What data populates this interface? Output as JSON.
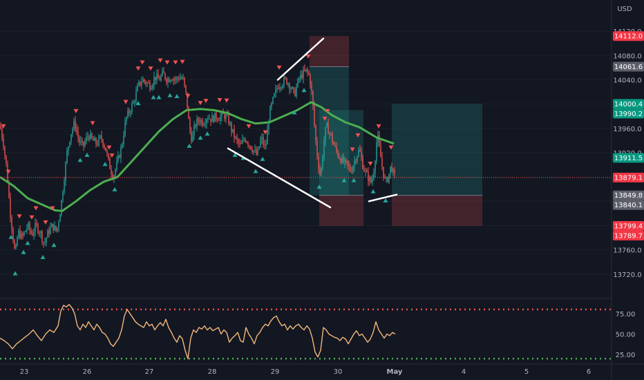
{
  "currency": "USD",
  "colors": {
    "background": "#131722",
    "up": "#26a69a",
    "down": "#ef5350",
    "ma": "#4caf50",
    "rsi": "#f5b87a",
    "rsi_upper": "#ef5350",
    "rsi_lower": "#4caf50",
    "trendline": "#ffffff"
  },
  "chart_data": [
    {
      "type": "candlestick",
      "title": "",
      "x_ticks": [
        "23",
        "26",
        "27",
        "28",
        "29",
        "30",
        "May",
        "4",
        "5",
        "6"
      ],
      "y_ticks": [
        "14120.0",
        "14080.0",
        "14040.0",
        "14000.0",
        "13960.0",
        "13920.0",
        "13880.0",
        "13840.0",
        "13800.0",
        "13760.0",
        "13720.0"
      ],
      "ylim": [
        13680,
        14160
      ],
      "price_badges": [
        {
          "label": "14112.0",
          "kind": "red"
        },
        {
          "label": "14061.6",
          "kind": "gray"
        },
        {
          "label": "14000.4",
          "kind": "teal"
        },
        {
          "label": "13990.2",
          "kind": "teal"
        },
        {
          "label": "13911.5",
          "kind": "teal"
        },
        {
          "label": "13879.1",
          "kind": "red"
        },
        {
          "label": "13849.8",
          "kind": "gray"
        },
        {
          "label": "13840.1",
          "kind": "gray"
        },
        {
          "label": "13799.4",
          "kind": "red"
        },
        {
          "label": "13789.7",
          "kind": "red"
        }
      ],
      "current_price": 13879.1,
      "ohlc_path": [
        [
          0,
          13965
        ],
        [
          5,
          13935
        ],
        [
          10,
          13890
        ],
        [
          14,
          13830
        ],
        [
          18,
          13790
        ],
        [
          22,
          13750
        ],
        [
          26,
          13790
        ],
        [
          32,
          13780
        ],
        [
          40,
          13800
        ],
        [
          46,
          13785
        ],
        [
          52,
          13800
        ],
        [
          58,
          13790
        ],
        [
          64,
          13770
        ],
        [
          70,
          13790
        ],
        [
          76,
          13800
        ],
        [
          82,
          13790
        ],
        [
          88,
          13830
        ],
        [
          92,
          13870
        ],
        [
          97,
          13920
        ],
        [
          102,
          13950
        ],
        [
          108,
          13970
        ],
        [
          114,
          13940
        ],
        [
          120,
          13930
        ],
        [
          128,
          13950
        ],
        [
          134,
          13940
        ],
        [
          140,
          13935
        ],
        [
          146,
          13945
        ],
        [
          152,
          13930
        ],
        [
          158,
          13900
        ],
        [
          164,
          13880
        ],
        [
          170,
          13905
        ],
        [
          176,
          13930
        ],
        [
          182,
          13975
        ],
        [
          188,
          13990
        ],
        [
          194,
          14005
        ],
        [
          200,
          14030
        ],
        [
          206,
          14040
        ],
        [
          212,
          14035
        ],
        [
          218,
          14030
        ],
        [
          224,
          14045
        ],
        [
          230,
          14040
        ],
        [
          236,
          14050
        ],
        [
          242,
          14040
        ],
        [
          248,
          14045
        ],
        [
          254,
          14040
        ],
        [
          260,
          14045
        ],
        [
          265,
          14040
        ],
        [
          270,
          14010
        ],
        [
          274,
          13960
        ],
        [
          278,
          13940
        ],
        [
          282,
          13965
        ],
        [
          288,
          13975
        ],
        [
          294,
          13970
        ],
        [
          300,
          13980
        ],
        [
          306,
          13975
        ],
        [
          312,
          13980
        ],
        [
          318,
          13978
        ],
        [
          324,
          13982
        ],
        [
          330,
          13975
        ],
        [
          336,
          13955
        ],
        [
          342,
          13940
        ],
        [
          348,
          13930
        ],
        [
          354,
          13945
        ],
        [
          360,
          13935
        ],
        [
          366,
          13925
        ],
        [
          372,
          13915
        ],
        [
          378,
          13945
        ],
        [
          384,
          13925
        ],
        [
          390,
          13985
        ],
        [
          396,
          14010
        ],
        [
          402,
          14030
        ],
        [
          408,
          14035
        ],
        [
          414,
          14040
        ],
        [
          420,
          14030
        ],
        [
          426,
          14015
        ],
        [
          432,
          14040
        ],
        [
          438,
          14050
        ],
        [
          444,
          14055
        ],
        [
          448,
          14045
        ],
        [
          452,
          14010
        ],
        [
          456,
          13950
        ],
        [
          460,
          13905
        ],
        [
          464,
          13880
        ],
        [
          468,
          13930
        ],
        [
          472,
          13965
        ],
        [
          478,
          13950
        ],
        [
          484,
          13930
        ],
        [
          490,
          13915
        ],
        [
          496,
          13905
        ],
        [
          502,
          13900
        ],
        [
          508,
          13890
        ],
        [
          514,
          13910
        ],
        [
          520,
          13925
        ],
        [
          526,
          13895
        ],
        [
          532,
          13880
        ],
        [
          538,
          13870
        ],
        [
          542,
          13900
        ],
        [
          546,
          13950
        ],
        [
          550,
          13920
        ],
        [
          554,
          13890
        ],
        [
          558,
          13870
        ],
        [
          562,
          13880
        ],
        [
          566,
          13900
        ],
        [
          570,
          13880
        ]
      ],
      "ma_path": [
        [
          0,
          13880
        ],
        [
          20,
          13865
        ],
        [
          40,
          13845
        ],
        [
          60,
          13835
        ],
        [
          80,
          13825
        ],
        [
          90,
          13824
        ],
        [
          110,
          13840
        ],
        [
          130,
          13858
        ],
        [
          150,
          13872
        ],
        [
          170,
          13880
        ],
        [
          190,
          13905
        ],
        [
          210,
          13930
        ],
        [
          230,
          13955
        ],
        [
          250,
          13975
        ],
        [
          270,
          13990
        ],
        [
          290,
          13992
        ],
        [
          310,
          13990
        ],
        [
          330,
          13985
        ],
        [
          350,
          13975
        ],
        [
          370,
          13968
        ],
        [
          390,
          13970
        ],
        [
          410,
          13980
        ],
        [
          430,
          13990
        ],
        [
          450,
          14003
        ],
        [
          465,
          13995
        ],
        [
          480,
          13982
        ],
        [
          500,
          13970
        ],
        [
          520,
          13962
        ],
        [
          545,
          13945
        ],
        [
          570,
          13935
        ]
      ],
      "sell_markers_x": [
        5,
        12,
        28,
        46,
        52,
        66,
        76,
        110,
        134,
        158,
        162,
        182,
        200,
        206,
        218,
        232,
        242,
        254,
        264,
        272,
        290,
        298,
        318,
        328,
        360,
        384,
        404,
        446,
        470,
        474,
        510,
        518,
        536,
        548,
        566
      ],
      "buy_markers_x": [
        16,
        22,
        34,
        40,
        62,
        78,
        116,
        126,
        152,
        166,
        200,
        222,
        230,
        246,
        256,
        274,
        290,
        300,
        340,
        352,
        370,
        380,
        426,
        440,
        462,
        498,
        512,
        540,
        558
      ],
      "trendlines": [
        {
          "from": [
            402,
            14040
          ],
          "to": [
            468,
            14108
          ]
        },
        {
          "from": [
            330,
            13927
          ],
          "to": [
            478,
            13830
          ]
        },
        {
          "from": [
            534,
            13840
          ],
          "to": [
            574,
            13851
          ]
        }
      ],
      "positions": [
        {
          "x0": 448,
          "x1": 505,
          "entry": 14061.6,
          "stop": 14112.0,
          "target": 13849.8
        },
        {
          "x0": 462,
          "x1": 526,
          "entry": 13849.8,
          "stop": 13799.4,
          "target": 13990.2
        },
        {
          "x0": 567,
          "x1": 698,
          "entry": 13849.8,
          "stop": 13799.4,
          "target": 14000.4
        }
      ]
    },
    {
      "type": "line",
      "title": "",
      "y_ticks": [
        "75.00",
        "50.00",
        "25.00"
      ],
      "ylim": [
        15,
        90
      ],
      "upper_band": 80,
      "lower_band": 20,
      "values": [
        [
          0,
          45
        ],
        [
          6,
          42
        ],
        [
          12,
          38
        ],
        [
          18,
          32
        ],
        [
          24,
          38
        ],
        [
          30,
          42
        ],
        [
          36,
          46
        ],
        [
          42,
          50
        ],
        [
          48,
          55
        ],
        [
          54,
          48
        ],
        [
          60,
          42
        ],
        [
          66,
          50
        ],
        [
          72,
          55
        ],
        [
          78,
          52
        ],
        [
          84,
          60
        ],
        [
          88,
          78
        ],
        [
          92,
          85
        ],
        [
          96,
          83
        ],
        [
          100,
          86
        ],
        [
          104,
          82
        ],
        [
          108,
          75
        ],
        [
          112,
          60
        ],
        [
          116,
          55
        ],
        [
          120,
          62
        ],
        [
          124,
          58
        ],
        [
          128,
          65
        ],
        [
          132,
          60
        ],
        [
          136,
          55
        ],
        [
          140,
          62
        ],
        [
          144,
          58
        ],
        [
          148,
          52
        ],
        [
          152,
          50
        ],
        [
          156,
          45
        ],
        [
          160,
          38
        ],
        [
          164,
          35
        ],
        [
          168,
          40
        ],
        [
          172,
          45
        ],
        [
          176,
          55
        ],
        [
          180,
          72
        ],
        [
          184,
          80
        ],
        [
          188,
          75
        ],
        [
          192,
          70
        ],
        [
          196,
          65
        ],
        [
          200,
          62
        ],
        [
          204,
          60
        ],
        [
          208,
          58
        ],
        [
          212,
          65
        ],
        [
          216,
          60
        ],
        [
          220,
          62
        ],
        [
          224,
          55
        ],
        [
          228,
          60
        ],
        [
          232,
          64
        ],
        [
          236,
          60
        ],
        [
          240,
          68
        ],
        [
          244,
          58
        ],
        [
          248,
          52
        ],
        [
          252,
          45
        ],
        [
          256,
          40
        ],
        [
          260,
          48
        ],
        [
          264,
          44
        ],
        [
          268,
          30
        ],
        [
          272,
          20
        ],
        [
          276,
          45
        ],
        [
          280,
          55
        ],
        [
          284,
          52
        ],
        [
          288,
          58
        ],
        [
          292,
          56
        ],
        [
          296,
          60
        ],
        [
          300,
          55
        ],
        [
          304,
          58
        ],
        [
          308,
          54
        ],
        [
          312,
          56
        ],
        [
          316,
          58
        ],
        [
          320,
          50
        ],
        [
          324,
          55
        ],
        [
          328,
          52
        ],
        [
          332,
          40
        ],
        [
          336,
          45
        ],
        [
          340,
          48
        ],
        [
          344,
          52
        ],
        [
          348,
          42
        ],
        [
          352,
          40
        ],
        [
          356,
          58
        ],
        [
          360,
          50
        ],
        [
          364,
          45
        ],
        [
          368,
          38
        ],
        [
          372,
          48
        ],
        [
          376,
          52
        ],
        [
          380,
          58
        ],
        [
          384,
          62
        ],
        [
          388,
          60
        ],
        [
          392,
          66
        ],
        [
          396,
          70
        ],
        [
          400,
          72
        ],
        [
          404,
          65
        ],
        [
          408,
          60
        ],
        [
          412,
          62
        ],
        [
          416,
          55
        ],
        [
          420,
          60
        ],
        [
          424,
          56
        ],
        [
          428,
          60
        ],
        [
          432,
          62
        ],
        [
          436,
          58
        ],
        [
          440,
          55
        ],
        [
          444,
          60
        ],
        [
          448,
          56
        ],
        [
          452,
          45
        ],
        [
          456,
          28
        ],
        [
          460,
          22
        ],
        [
          464,
          30
        ],
        [
          468,
          58
        ],
        [
          472,
          55
        ],
        [
          476,
          50
        ],
        [
          480,
          48
        ],
        [
          484,
          46
        ],
        [
          488,
          45
        ],
        [
          492,
          42
        ],
        [
          496,
          46
        ],
        [
          500,
          44
        ],
        [
          504,
          38
        ],
        [
          508,
          44
        ],
        [
          512,
          50
        ],
        [
          516,
          54
        ],
        [
          520,
          48
        ],
        [
          524,
          50
        ],
        [
          528,
          45
        ],
        [
          532,
          40
        ],
        [
          536,
          44
        ],
        [
          540,
          52
        ],
        [
          544,
          65
        ],
        [
          548,
          55
        ],
        [
          552,
          50
        ],
        [
          556,
          45
        ],
        [
          560,
          50
        ],
        [
          564,
          48
        ],
        [
          568,
          52
        ],
        [
          572,
          50
        ]
      ]
    }
  ]
}
